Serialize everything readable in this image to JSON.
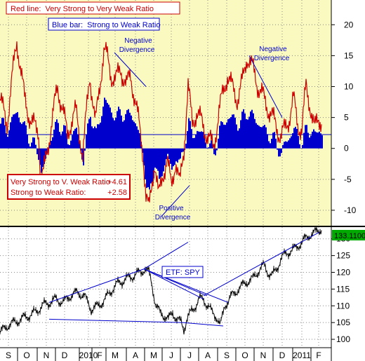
{
  "chart_data": [
    {
      "type": "bar",
      "panel": "upper",
      "background_color": "#fafac0",
      "legend": {
        "red_line_label": "Red line:  Very Strong to Very Weak Ratio",
        "blue_bar_label": "Blue bar:  Strong to Weak Ratio"
      },
      "readout": {
        "red_label": "Very Strong to V. Weak Ratio",
        "red_value": "+4.61",
        "blue_label": "Strong to Weak Ratio:",
        "blue_value": "+2.58"
      },
      "annotations": [
        {
          "text_line1": "Negative",
          "text_line2": "Divergence",
          "color": "#0000cc"
        },
        {
          "text_line1": "Negative",
          "text_line2": "Divergence",
          "color": "#0000cc"
        },
        {
          "text_line1": "Positive",
          "text_line2": "Divergence",
          "color": "#0000cc"
        }
      ],
      "ylim": [
        -12.5,
        24
      ],
      "yticks": [
        "20",
        "15",
        "10",
        "5",
        "0",
        "-5",
        "-10"
      ],
      "ytick_values": [
        20,
        15,
        10,
        5,
        0,
        -5,
        -10
      ],
      "grid": true,
      "series": [
        {
          "name": "Red line:  Very Strong to Very Weak Ratio",
          "color": "#cc0000",
          "type": "line",
          "x": [
            0,
            10,
            18,
            24,
            35,
            45,
            55,
            58,
            62,
            72,
            82,
            90,
            96,
            100,
            108,
            118,
            128,
            136,
            142,
            148,
            152,
            158,
            165,
            172,
            180,
            186,
            192,
            198,
            204,
            208,
            212,
            216,
            220,
            226,
            232,
            238,
            244,
            250,
            256,
            262,
            268,
            274,
            280,
            288,
            296,
            304,
            312,
            318,
            324,
            330,
            338,
            346,
            352,
            360,
            368,
            376,
            384,
            392,
            400,
            406,
            412,
            418,
            424,
            430,
            436,
            442,
            448,
            454,
            458
          ],
          "y": [
            8,
            4,
            12,
            17.5,
            8,
            4,
            3,
            -5,
            -4,
            3,
            10,
            6,
            2,
            4,
            6,
            -1,
            12,
            4,
            10,
            16,
            15,
            12,
            11,
            13,
            10,
            12,
            8,
            4,
            -1,
            -8,
            -10,
            -6,
            -2,
            -8,
            -4,
            -2,
            -6,
            -2,
            -6,
            0,
            10,
            4,
            6,
            4,
            2,
            0,
            6,
            9,
            12,
            10,
            8,
            11,
            15,
            13,
            10,
            8,
            6,
            4,
            2,
            3,
            5,
            8,
            4,
            3,
            10,
            7,
            3,
            5,
            4.61
          ]
        },
        {
          "name": "Blue bar:  Strong to Weak Ratio",
          "color": "#0000cc",
          "type": "bar",
          "x": [
            0,
            10,
            18,
            24,
            35,
            45,
            55,
            58,
            62,
            72,
            82,
            90,
            96,
            100,
            108,
            118,
            128,
            136,
            142,
            148,
            152,
            158,
            165,
            172,
            180,
            186,
            192,
            198,
            204,
            208,
            212,
            216,
            220,
            226,
            232,
            238,
            244,
            250,
            256,
            262,
            268,
            274,
            280,
            288,
            296,
            304,
            312,
            318,
            324,
            330,
            338,
            346,
            352,
            360,
            368,
            376,
            384,
            392,
            400,
            406,
            412,
            418,
            424,
            430,
            436,
            442,
            448,
            454,
            458
          ],
          "y": [
            4,
            3,
            5,
            6,
            3,
            1,
            -1,
            -4,
            -3,
            2,
            4,
            3,
            1,
            2,
            3,
            -2,
            6,
            2,
            5,
            8,
            7,
            6,
            5,
            6,
            5,
            6,
            4,
            2,
            -2,
            -6,
            -8,
            -5,
            -2,
            -6,
            -3,
            -1,
            -4,
            -1,
            -3,
            1,
            4,
            2,
            3,
            2,
            1,
            -1,
            3,
            4,
            5,
            5,
            4,
            5,
            6,
            5,
            4,
            3,
            2,
            1,
            -1,
            1,
            2,
            3,
            2,
            1,
            3,
            3,
            2,
            3,
            2.58
          ]
        }
      ],
      "divergence_lines": [
        {
          "x": [
            163,
            208
          ],
          "y": [
            15.5,
            10
          ]
        },
        {
          "x": [
            355,
            402
          ],
          "y": [
            15,
            5
          ]
        },
        {
          "x": [
            230,
            270
          ],
          "y": [
            -11,
            -6
          ]
        }
      ]
    },
    {
      "type": "line",
      "panel": "lower",
      "background_color": "#ffffff",
      "label": "ETF: SPY",
      "price_readout": "133.1100",
      "ylim": [
        97.5,
        133.5
      ],
      "yticks": [
        "130",
        "125",
        "120",
        "115",
        "110",
        "105",
        "100"
      ],
      "ytick_values": [
        130,
        125,
        120,
        115,
        110,
        105,
        100
      ],
      "grid": true,
      "x_categories": [
        "S",
        "O",
        "N",
        "D",
        "2010",
        "M",
        "A",
        "M",
        "J",
        "J",
        "A",
        "S",
        "O",
        "N",
        "D",
        "2011"
      ],
      "x_category_positions": [
        12,
        38,
        66,
        92,
        126,
        164,
        193,
        219,
        244,
        270,
        296,
        323,
        349,
        375,
        402,
        430
      ],
      "x_extra_labels": [
        "F",
        "F"
      ],
      "x_extra_positions": [
        142,
        454
      ],
      "series": [
        {
          "name": "SPY",
          "color": "#000000",
          "x": [
            0,
            10,
            20,
            30,
            40,
            50,
            60,
            70,
            80,
            90,
            100,
            110,
            120,
            130,
            140,
            150,
            160,
            170,
            180,
            190,
            200,
            206,
            212,
            216,
            222,
            228,
            234,
            240,
            246,
            252,
            258,
            262,
            266,
            272,
            278,
            284,
            290,
            296,
            302,
            308,
            314,
            320,
            330,
            340,
            350,
            360,
            370,
            376,
            382,
            388,
            394,
            400,
            410,
            420,
            430,
            440,
            450,
            458
          ],
          "y": [
            102,
            104,
            105,
            106,
            107,
            108,
            110,
            111,
            112,
            111,
            113,
            114,
            113,
            109,
            110,
            112,
            115,
            117,
            118,
            119,
            120,
            121,
            120,
            117,
            110,
            108,
            107,
            106,
            108,
            106,
            105,
            103,
            106,
            108,
            110,
            112,
            112,
            110,
            108,
            107,
            104,
            110,
            113,
            115,
            117,
            118,
            121,
            122,
            120,
            119,
            121,
            124,
            126,
            127,
            129,
            131,
            132,
            133.11
          ]
        }
      ],
      "trend_lines": [
        {
          "x": [
            70,
            205
          ],
          "y": [
            111,
            121
          ]
        },
        {
          "x": [
            205,
            268
          ],
          "y": [
            121,
            129
          ]
        },
        {
          "x": [
            205,
            295
          ],
          "y": [
            121,
            113
          ]
        },
        {
          "x": [
            205,
            325
          ],
          "y": [
            121,
            111
          ]
        },
        {
          "x": [
            205,
            290
          ],
          "y": [
            121,
            112
          ]
        },
        {
          "x": [
            290,
            455
          ],
          "y": [
            113,
            132
          ]
        },
        {
          "x": [
            70,
            260
          ],
          "y": [
            106,
            105
          ]
        },
        {
          "x": [
            260,
            318
          ],
          "y": [
            105,
            104
          ]
        }
      ]
    }
  ]
}
